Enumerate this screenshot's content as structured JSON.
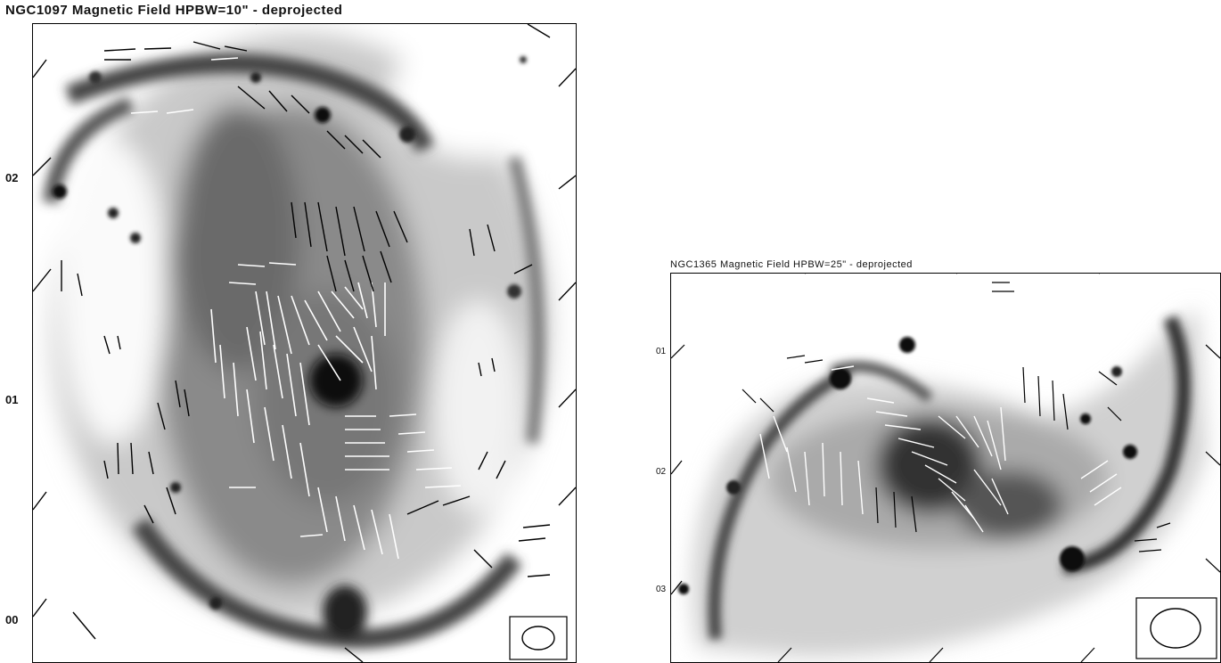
{
  "panels": [
    {
      "title": "NGC1097   Magnetic Field   HPBW=10\"   -   deprojected",
      "y_tick_labels": [
        "02",
        "01",
        "00"
      ]
    },
    {
      "title": "NGC1365   Magnetic Field   HPBW=25\"   -   deprojected",
      "y_tick_labels": [
        "01",
        "02",
        "03"
      ]
    }
  ]
}
